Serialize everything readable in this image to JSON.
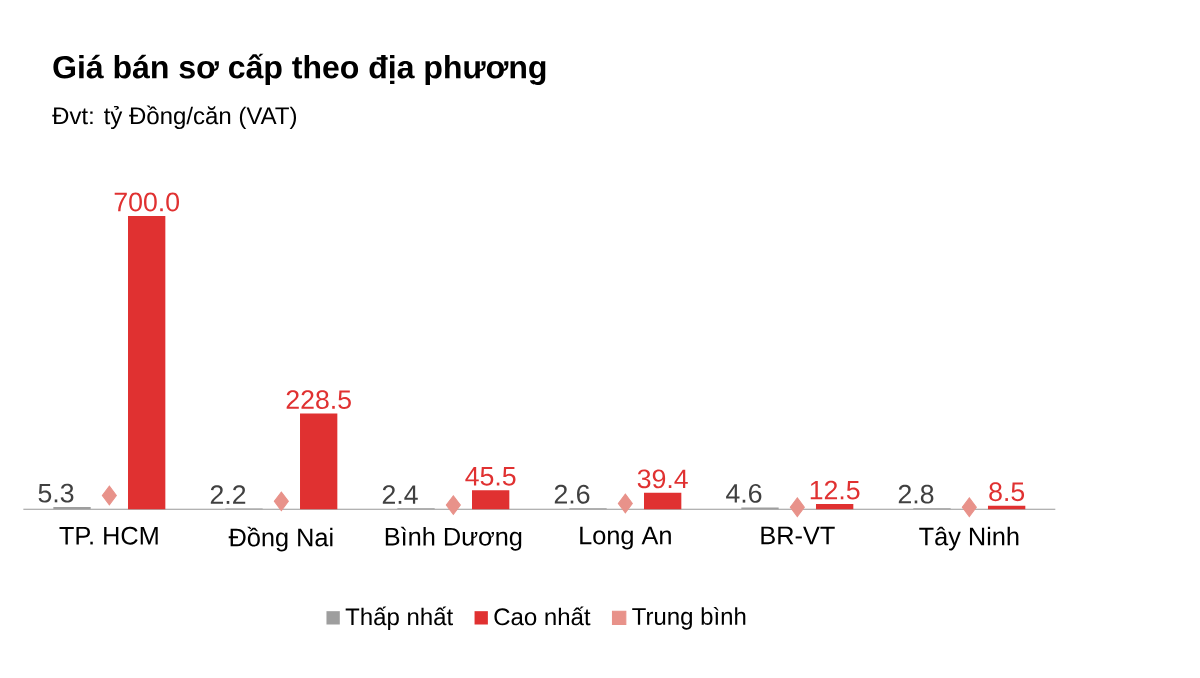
{
  "chart_data": {
    "type": "bar",
    "title": "Giá bán sơ cấp theo địa phương",
    "subtitle": "Đvt: tỷ Đồng/căn (VAT)",
    "categories": [
      "TP. HCM",
      "Đồng Nai",
      "Bình Dương",
      "Long An",
      "BR-VT",
      "Tây Ninh"
    ],
    "ylim": [
      0,
      700
    ],
    "legend": "bottom",
    "series": [
      {
        "name": "Thấp nhất",
        "color": "#9e9e9e",
        "values": [
          5.3,
          2.2,
          2.4,
          2.6,
          4.6,
          2.8
        ],
        "value_labels": [
          "5.3",
          "2.2",
          "2.4",
          "2.6",
          "4.6",
          "2.8"
        ]
      },
      {
        "name": "Cao nhất",
        "color": "#e03131",
        "values": [
          700.0,
          228.5,
          45.5,
          39.4,
          12.5,
          8.5
        ],
        "value_labels": [
          "700.0",
          "228.5",
          "45.5",
          "39.4",
          "12.5",
          "8.5"
        ]
      },
      {
        "name": "Trung bình",
        "type": "scatter",
        "marker": "diamond",
        "color": "#e8928a",
        "values": [
          33,
          19,
          10,
          14,
          5,
          5
        ]
      }
    ]
  }
}
